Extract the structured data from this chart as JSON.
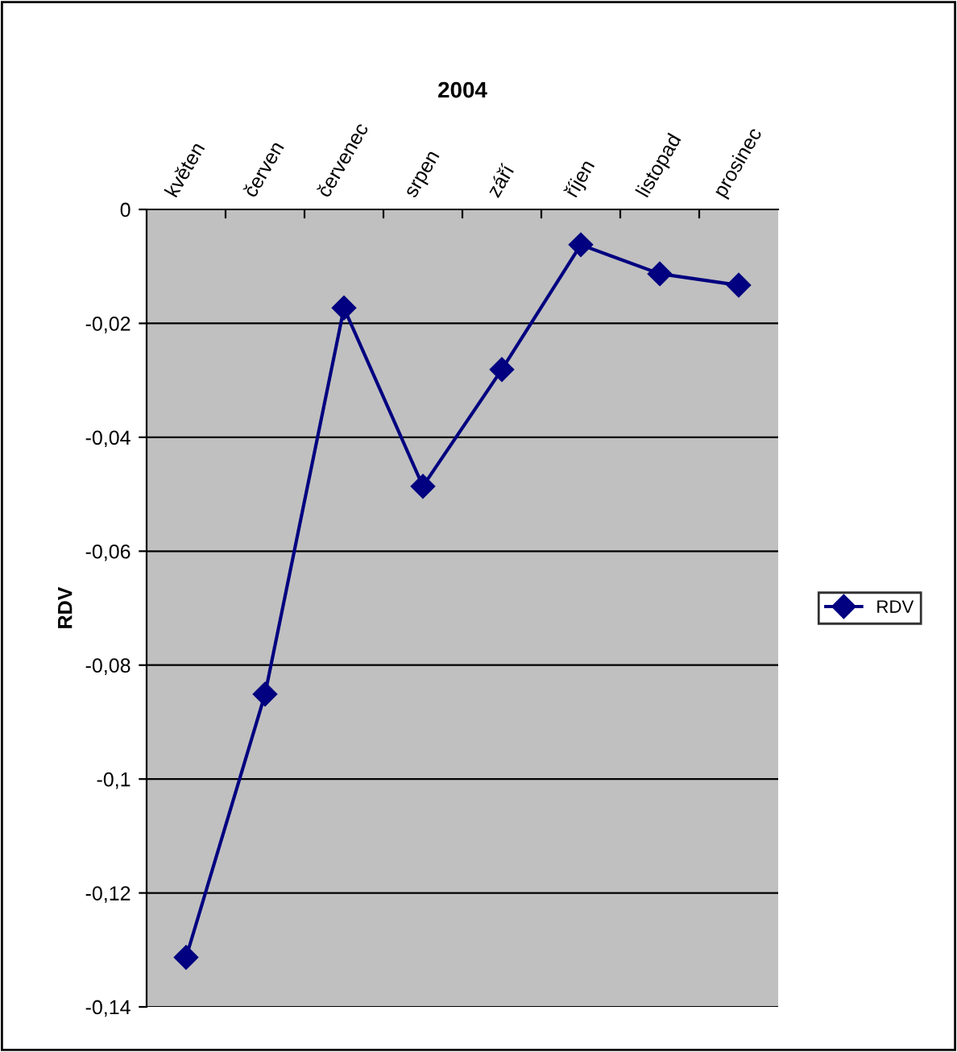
{
  "chart_data": {
    "type": "line",
    "title": "2004",
    "ylabel": "RDV",
    "categories": [
      "květen",
      "červen",
      "červenec",
      "srpen",
      "září",
      "říjen",
      "listopad",
      "prosinec"
    ],
    "series": [
      {
        "name": "RDV",
        "color": "#000080",
        "values": [
          -0.1313,
          -0.0851,
          -0.0173,
          -0.0486,
          -0.0281,
          -0.0062,
          -0.0113,
          -0.0133
        ]
      }
    ],
    "ylim": [
      -0.14,
      0
    ],
    "yticks": [
      {
        "value": -0.14,
        "label": "-0,14"
      },
      {
        "value": -0.12,
        "label": "-0,12"
      },
      {
        "value": -0.1,
        "label": "-0,1"
      },
      {
        "value": -0.08,
        "label": "-0,08"
      },
      {
        "value": -0.06,
        "label": "-0,06"
      },
      {
        "value": -0.04,
        "label": "-0,04"
      },
      {
        "value": -0.02,
        "label": "-0,02"
      },
      0
    ],
    "grid": "y",
    "legend": "right",
    "marker": "diamond",
    "line_style": "solid"
  }
}
